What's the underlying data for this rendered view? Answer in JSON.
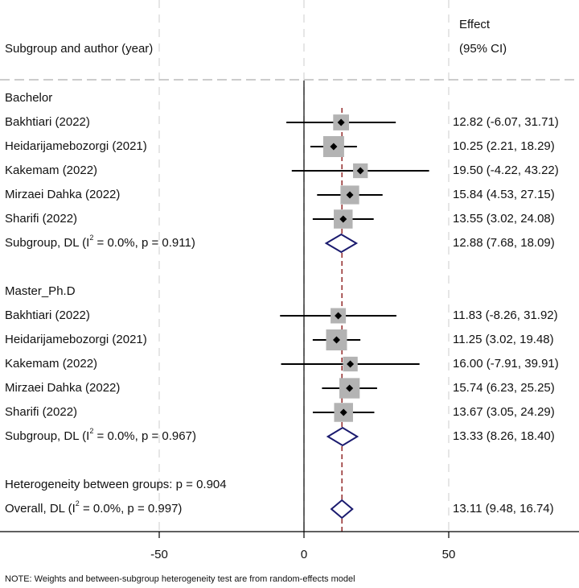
{
  "chart_data": {
    "type": "forest",
    "header": {
      "left": "Subgroup and author (year)",
      "effect_line1": "Effect",
      "effect_line2": "(95% CI)"
    },
    "xaxis": {
      "range": [
        -100,
        100
      ],
      "ticks": [
        -50,
        0,
        50
      ],
      "tick_labels": [
        "-50",
        "0",
        "50"
      ],
      "null_line": 0
    },
    "overall_effect_line": 13.11,
    "rows": [
      {
        "kind": "header",
        "label": "Bachelor"
      },
      {
        "kind": "study",
        "label": "Bakhtiari      (2022)",
        "est": 12.82,
        "lo": -6.07,
        "hi": 31.71,
        "weight": 0.55,
        "ci_text": "12.82 (-6.07, 31.71)"
      },
      {
        "kind": "study",
        "label": "Heidarijamebozorgi (2021)",
        "est": 10.25,
        "lo": 2.21,
        "hi": 18.29,
        "weight": 1.0,
        "ci_text": "10.25 (2.21, 18.29)"
      },
      {
        "kind": "study",
        "label": "Kakemam (2022)",
        "est": 19.5,
        "lo": -4.22,
        "hi": 43.22,
        "weight": 0.45,
        "ci_text": "19.50 (-4.22, 43.22)"
      },
      {
        "kind": "study",
        "label": "Mirzaei Dahka  (2022)",
        "est": 15.84,
        "lo": 4.53,
        "hi": 27.15,
        "weight": 0.8,
        "ci_text": "15.84 (4.53, 27.15)"
      },
      {
        "kind": "study",
        "label": "Sharifi (2022)",
        "est": 13.55,
        "lo": 3.02,
        "hi": 24.08,
        "weight": 0.82,
        "ci_text": "13.55 (3.02, 24.08)"
      },
      {
        "kind": "subgroup",
        "label_pre": "Subgroup, DL (I",
        "label_sup": "2",
        "label_post": " = 0.0%, p = 0.911)",
        "est": 12.88,
        "lo": 7.68,
        "hi": 18.09,
        "ci_text": "12.88 (7.68, 18.09)"
      },
      {
        "kind": "blank"
      },
      {
        "kind": "header",
        "label": "Master_Ph.D"
      },
      {
        "kind": "study",
        "label": "Bakhtiari      (2022)",
        "est": 11.83,
        "lo": -8.26,
        "hi": 31.92,
        "weight": 0.5,
        "ci_text": "11.83 (-8.26, 31.92)"
      },
      {
        "kind": "study",
        "label": "Heidarijamebozorgi (2021)",
        "est": 11.25,
        "lo": 3.02,
        "hi": 19.48,
        "weight": 1.0,
        "ci_text": "11.25 (3.02, 19.48)"
      },
      {
        "kind": "study",
        "label": "Kakemam (2022)",
        "est": 16.0,
        "lo": -7.91,
        "hi": 39.91,
        "weight": 0.45,
        "ci_text": "16.00 (-7.91, 39.91)"
      },
      {
        "kind": "study",
        "label": "Mirzaei Dahka  (2022)",
        "est": 15.74,
        "lo": 6.23,
        "hi": 25.25,
        "weight": 0.95,
        "ci_text": "15.74 (6.23, 25.25)"
      },
      {
        "kind": "study",
        "label": "Sharifi (2022)",
        "est": 13.67,
        "lo": 3.05,
        "hi": 24.29,
        "weight": 0.82,
        "ci_text": "13.67 (3.05, 24.29)"
      },
      {
        "kind": "subgroup",
        "label_pre": "Subgroup, DL (I",
        "label_sup": "2",
        "label_post": " = 0.0%, p = 0.967)",
        "est": 13.33,
        "lo": 8.26,
        "hi": 18.4,
        "ci_text": "13.33 (8.26, 18.40)"
      },
      {
        "kind": "blank"
      },
      {
        "kind": "text",
        "label": "Heterogeneity between groups: p = 0.904"
      },
      {
        "kind": "overall",
        "label_pre": "Overall, DL (I",
        "label_sup": "2",
        "label_post": " = 0.0%, p = 0.997)",
        "est": 13.11,
        "lo": 9.48,
        "hi": 16.74,
        "ci_text": "13.11 (9.48, 16.74)"
      }
    ],
    "note": "NOTE: Weights and between-subgroup heterogeneity test are from random-effects model",
    "colors": {
      "ci_line": "#000000",
      "weight_box": "#b3b3b3",
      "point": "#000000",
      "diamond": "#1a1a6e",
      "overall_line": "#8b1a1a",
      "grid": "#dddddd",
      "separator": "#bbbbbb"
    }
  }
}
